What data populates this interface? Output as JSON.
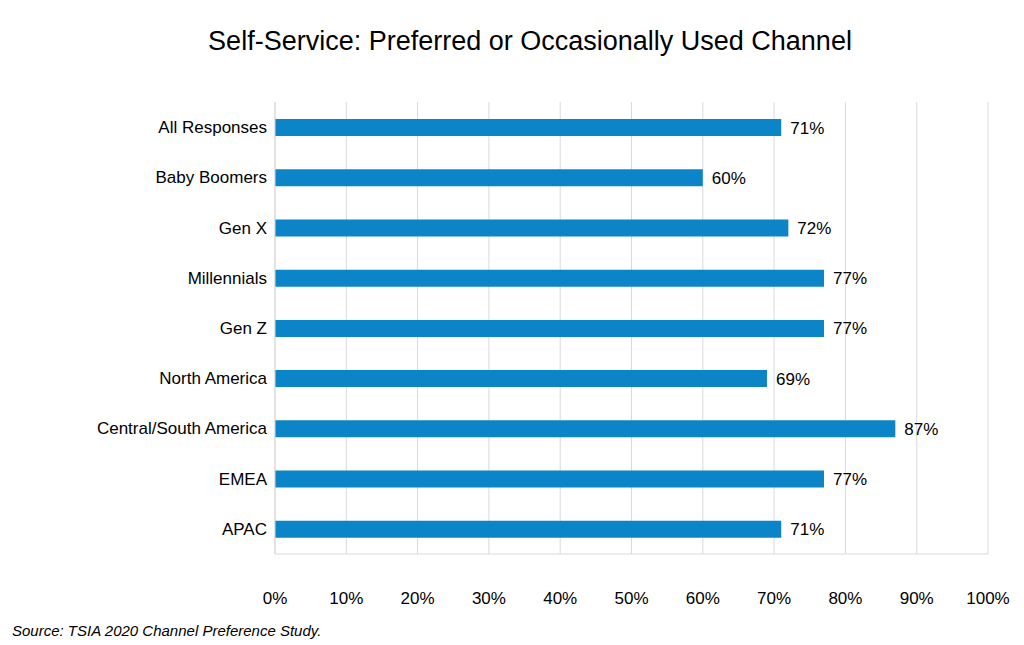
{
  "chart_data": {
    "type": "bar",
    "title": "Self-Service: Preferred or Occasionally Used Channel",
    "orientation": "horizontal",
    "categories": [
      "All Responses",
      "Baby Boomers",
      "Gen X",
      "Millennials",
      "Gen Z",
      "North America",
      "Central/South America",
      "EMEA",
      "APAC"
    ],
    "values": [
      71,
      60,
      72,
      77,
      77,
      69,
      87,
      77,
      71
    ],
    "value_labels": [
      "71%",
      "60%",
      "72%",
      "77%",
      "77%",
      "69%",
      "87%",
      "77%",
      "71%"
    ],
    "data_labels": true,
    "color": "#0b85c8",
    "xlim": [
      0,
      100
    ],
    "xticks": [
      {
        "value": 0,
        "label": "0%"
      },
      {
        "value": 10,
        "label": "10%"
      },
      {
        "value": 20,
        "label": "20%"
      },
      {
        "value": 30,
        "label": "30%"
      },
      {
        "value": 40,
        "label": "40%"
      },
      {
        "value": 50,
        "label": "50%"
      },
      {
        "value": 60,
        "label": "60%"
      },
      {
        "value": 70,
        "label": "70%"
      },
      {
        "value": 80,
        "label": "80%"
      },
      {
        "value": 90,
        "label": "90%"
      },
      {
        "value": 100,
        "label": "100%"
      }
    ],
    "grid": true,
    "annotations": [
      "Source: TSIA 2020 Channel Preference Study."
    ]
  }
}
